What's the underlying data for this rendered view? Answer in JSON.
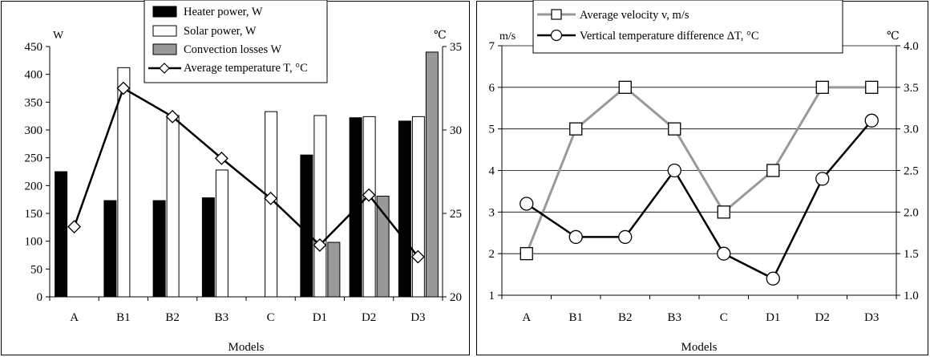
{
  "chart_data": [
    {
      "type": "bar",
      "xlabel": "Models",
      "y_left_unit": "W",
      "y_right_unit": "℃",
      "categories": [
        "A",
        "B1",
        "B2",
        "B3",
        "C",
        "D1",
        "D2",
        "D3"
      ],
      "ylim_left": [
        0,
        450
      ],
      "yticks_left": [
        "0",
        "50",
        "100",
        "150",
        "200",
        "250",
        "300",
        "350",
        "400",
        "450"
      ],
      "ylim_right": [
        20,
        35
      ],
      "yticks_right": [
        "20",
        "25",
        "30",
        "35"
      ],
      "grid": false,
      "legend_position": "top-center",
      "series": [
        {
          "name": "Heater power, W",
          "kind": "bar",
          "axis": "left",
          "color": "#000000",
          "values": [
            225,
            173,
            173,
            178,
            null,
            255,
            322,
            316
          ]
        },
        {
          "name": "Solar power, W",
          "kind": "bar",
          "axis": "left",
          "color": "#ffffff",
          "values": [
            null,
            412,
            326,
            228,
            333,
            326,
            324,
            324
          ]
        },
        {
          "name": "Convection losses W",
          "kind": "bar",
          "axis": "left",
          "color": "#999999",
          "values": [
            null,
            null,
            null,
            null,
            null,
            98,
            181,
            440
          ]
        },
        {
          "name": "Average temperature T, °C",
          "kind": "line",
          "axis": "right",
          "color": "#000000",
          "marker": "diamond",
          "values": [
            24.2,
            32.5,
            30.8,
            28.3,
            25.9,
            23.1,
            26.1,
            22.4
          ]
        }
      ]
    },
    {
      "type": "line",
      "xlabel": "Models",
      "y_left_unit": "m/s",
      "y_right_unit": "℃",
      "categories": [
        "A",
        "B1",
        "B2",
        "B3",
        "C",
        "D1",
        "D2",
        "D3"
      ],
      "ylim_left": [
        1,
        7
      ],
      "yticks_left": [
        "1",
        "2",
        "3",
        "4",
        "5",
        "6",
        "7"
      ],
      "ylim_right": [
        1.0,
        4.0
      ],
      "yticks_right": [
        "1.0",
        "1.5",
        "2.0",
        "2.5",
        "3.0",
        "3.5",
        "4.0"
      ],
      "grid": true,
      "legend_position": "top-center",
      "series": [
        {
          "name": "Average velocity v, m/s",
          "axis": "left",
          "color": "#999999",
          "marker": "square",
          "values": [
            2,
            5,
            6,
            5,
            3,
            4,
            6,
            6
          ]
        },
        {
          "name": "Vertical temperature difference ΔT, °C",
          "axis": "right",
          "color": "#000000",
          "marker": "circle",
          "values": [
            2.1,
            1.7,
            1.7,
            2.5,
            1.5,
            1.2,
            2.4,
            3.1
          ]
        }
      ]
    }
  ]
}
